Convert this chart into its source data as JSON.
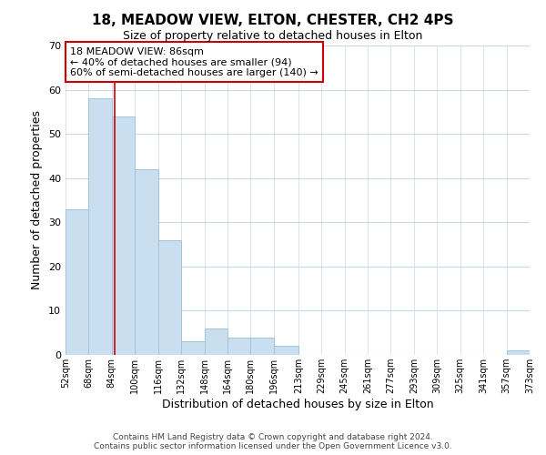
{
  "title": "18, MEADOW VIEW, ELTON, CHESTER, CH2 4PS",
  "subtitle": "Size of property relative to detached houses in Elton",
  "xlabel": "Distribution of detached houses by size in Elton",
  "ylabel": "Number of detached properties",
  "bar_edges": [
    52,
    68,
    84,
    100,
    116,
    132,
    148,
    164,
    180,
    196,
    213,
    229,
    245,
    261,
    277,
    293,
    309,
    325,
    341,
    357,
    373
  ],
  "bar_heights": [
    33,
    58,
    54,
    42,
    26,
    3,
    6,
    4,
    4,
    2,
    0,
    0,
    0,
    0,
    0,
    0,
    0,
    0,
    0,
    1
  ],
  "tick_labels": [
    "52sqm",
    "68sqm",
    "84sqm",
    "100sqm",
    "116sqm",
    "132sqm",
    "148sqm",
    "164sqm",
    "180sqm",
    "196sqm",
    "213sqm",
    "229sqm",
    "245sqm",
    "261sqm",
    "277sqm",
    "293sqm",
    "309sqm",
    "325sqm",
    "341sqm",
    "357sqm",
    "373sqm"
  ],
  "bar_color": "#c9dff0",
  "bar_edge_color": "#a0c4e0",
  "property_line_x": 86,
  "property_line_color": "#cc0000",
  "annotation_text": "18 MEADOW VIEW: 86sqm\n← 40% of detached houses are smaller (94)\n60% of semi-detached houses are larger (140) →",
  "ylim": [
    0,
    70
  ],
  "yticks": [
    0,
    10,
    20,
    30,
    40,
    50,
    60,
    70
  ],
  "footer_line1": "Contains HM Land Registry data © Crown copyright and database right 2024.",
  "footer_line2": "Contains public sector information licensed under the Open Government Licence v3.0.",
  "background_color": "#ffffff",
  "grid_color": "#c8d8e8",
  "title_fontsize": 11,
  "subtitle_fontsize": 9,
  "axis_label_fontsize": 9,
  "tick_fontsize": 7,
  "annotation_fontsize": 8,
  "footer_fontsize": 6.5
}
